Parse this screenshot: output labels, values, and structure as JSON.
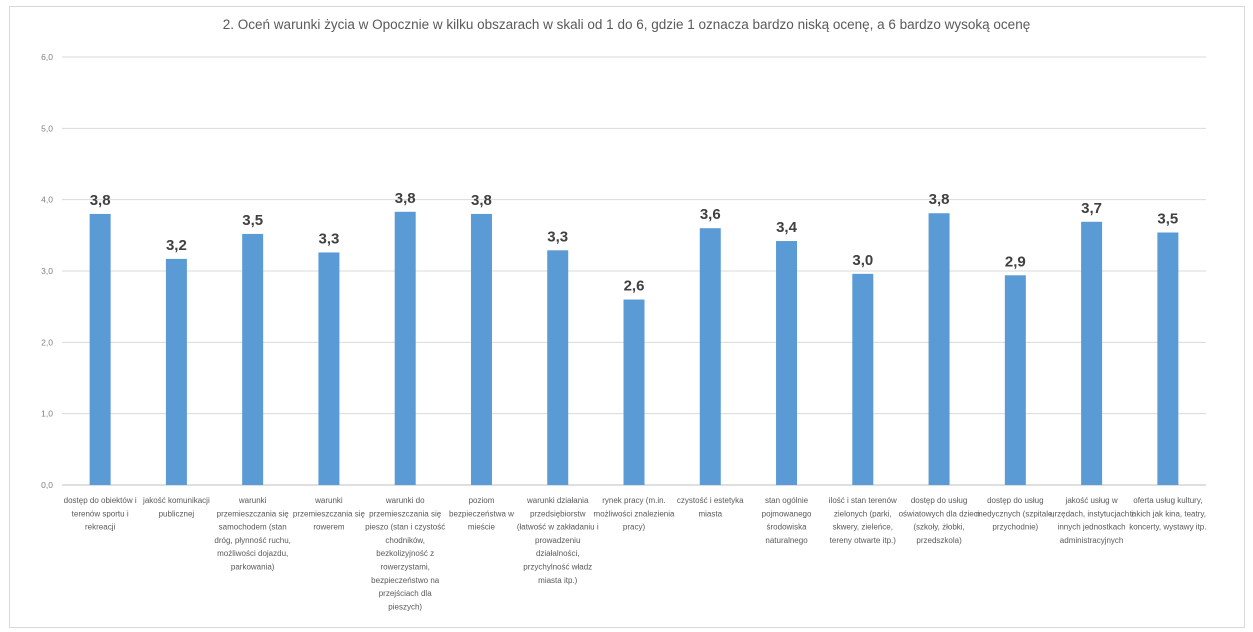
{
  "chart_data": {
    "type": "bar",
    "title": "2. Oceń warunki życia w Opocznie w kilku obszarach w skali od 1 do 6, gdzie 1 oznacza bardzo niską ocenę, a 6 bardzo wysoką ocenę",
    "xlabel": "",
    "ylabel": "",
    "ylim": [
      0,
      6
    ],
    "yticks": [
      "0,0",
      "1,0",
      "2,0",
      "3,0",
      "4,0",
      "5,0",
      "6,0"
    ],
    "grid": true,
    "bar_color": "#5b9bd5",
    "categories": [
      [
        "dostęp do obiektów i",
        "terenów sportu i",
        "rekreacji"
      ],
      [
        "jakość komunikacji",
        "publicznej"
      ],
      [
        "warunki",
        "przemieszczania się",
        "samochodem (stan",
        "dróg, płynność ruchu,",
        "możliwości dojazdu,",
        "parkowania)"
      ],
      [
        "warunki",
        "przemieszczania się",
        "rowerem"
      ],
      [
        "warunki do",
        "przemieszczania się",
        "pieszo (stan i czystość",
        "chodników,",
        "bezkolizyjność z",
        "rowerzystami,",
        "bezpieczeństwo na",
        "przejściach dla",
        "pieszych)"
      ],
      [
        "poziom",
        "bezpieczeństwa w",
        "mieście"
      ],
      [
        "warunki działania",
        "przedsiębiorstw",
        "(łatwość w zakładaniu i",
        "prowadzeniu",
        "działalności,",
        "przychylność władz",
        "miasta itp.)"
      ],
      [
        "rynek pracy (m.in.",
        "możliwości znalezienia",
        "pracy)"
      ],
      [
        "czystość i estetyka",
        "miasta"
      ],
      [
        "stan ogólnie",
        "pojmowanego",
        "środowiska",
        "naturalnego"
      ],
      [
        "ilość i stan terenów",
        "zielonych (parki,",
        "skwery, zieleńce,",
        "tereny otwarte itp.)"
      ],
      [
        "dostęp do usług",
        "oświatowych dla dzieci",
        "(szkoły, żłobki,",
        "przedszkola)"
      ],
      [
        "dostęp do usług",
        "medycznych (szpitale,",
        "przychodnie)"
      ],
      [
        "jakość usług w",
        "urzędach, instytucjach i",
        "innych jednostkach",
        "administracyjnych"
      ],
      [
        "oferta usług kultury,",
        "takich jak kina, teatry,",
        "koncerty, wystawy itp."
      ]
    ],
    "values": [
      3.8,
      3.17,
      3.52,
      3.26,
      3.83,
      3.8,
      3.29,
      2.6,
      3.6,
      3.42,
      2.96,
      3.81,
      2.94,
      3.69,
      3.54
    ],
    "data_labels": [
      "3,8",
      "3,2",
      "3,5",
      "3,3",
      "3,8",
      "3,8",
      "3,3",
      "2,6",
      "3,6",
      "3,4",
      "3,0",
      "3,8",
      "2,9",
      "3,7",
      "3,5"
    ]
  }
}
